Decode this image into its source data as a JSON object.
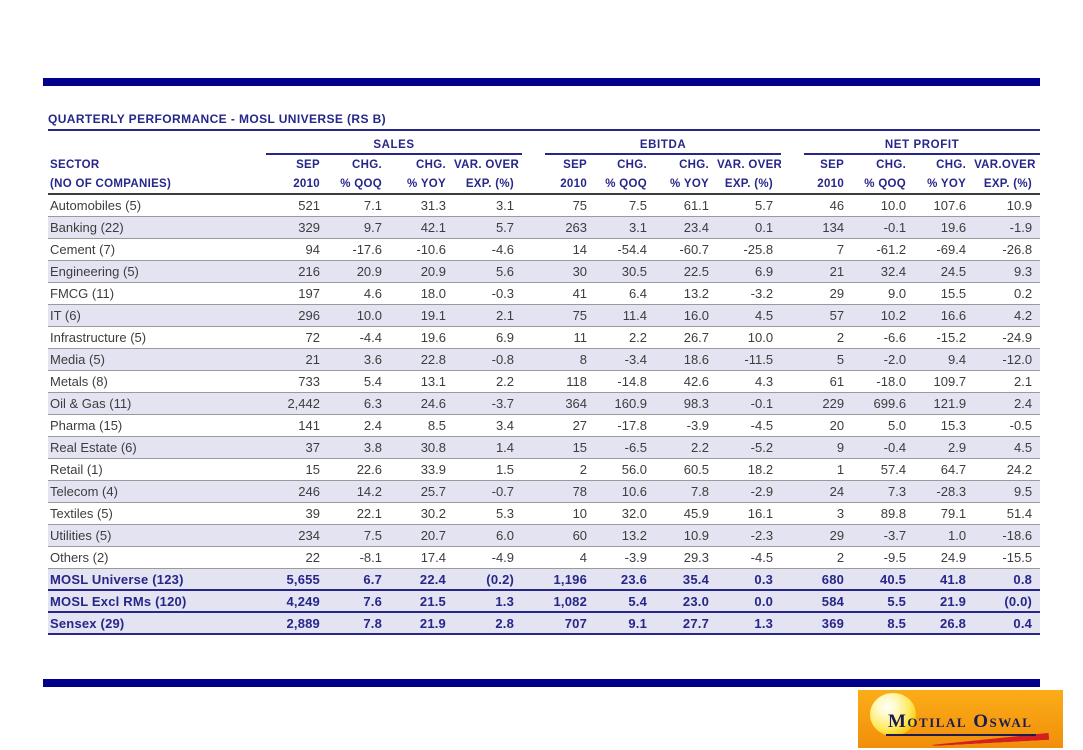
{
  "table": {
    "title": "QUARTERLY PERFORMANCE - MOSL UNIVERSE (RS B)",
    "sector_header": [
      "SECTOR",
      "(NO OF COMPANIES)"
    ],
    "col_groups": [
      {
        "label": "SALES",
        "cols": [
          {
            "l1": "SEP",
            "l2": "2010"
          },
          {
            "l1": "CHG.",
            "l2": "% QOQ"
          },
          {
            "l1": "CHG.",
            "l2": "% YOY"
          },
          {
            "l1": "VAR. OVER",
            "l2": "EXP. (%)"
          }
        ]
      },
      {
        "label": "EBITDA",
        "cols": [
          {
            "l1": "SEP",
            "l2": "2010"
          },
          {
            "l1": "CHG.",
            "l2": "% QOQ"
          },
          {
            "l1": "CHG.",
            "l2": "% YOY"
          },
          {
            "l1": "VAR. OVER",
            "l2": "EXP. (%)"
          }
        ]
      },
      {
        "label": "NET PROFIT",
        "cols": [
          {
            "l1": "SEP",
            "l2": "2010"
          },
          {
            "l1": "CHG.",
            "l2": "% QOQ"
          },
          {
            "l1": "CHG.",
            "l2": "% YOY"
          },
          {
            "l1": "VAR.OVER",
            "l2": "EXP. (%)"
          }
        ]
      }
    ],
    "rows": [
      {
        "sector": "Automobiles (5)",
        "values": [
          "521",
          "7.1",
          "31.3",
          "3.1",
          "75",
          "7.5",
          "61.1",
          "5.7",
          "46",
          "10.0",
          "107.6",
          "10.9"
        ],
        "shaded": false,
        "summary": false
      },
      {
        "sector": "Banking (22)",
        "values": [
          "329",
          "9.7",
          "42.1",
          "5.7",
          "263",
          "3.1",
          "23.4",
          "0.1",
          "134",
          "-0.1",
          "19.6",
          "-1.9"
        ],
        "shaded": true,
        "summary": false
      },
      {
        "sector": "Cement (7)",
        "values": [
          "94",
          "-17.6",
          "-10.6",
          "-4.6",
          "14",
          "-54.4",
          "-60.7",
          "-25.8",
          "7",
          "-61.2",
          "-69.4",
          "-26.8"
        ],
        "shaded": false,
        "summary": false
      },
      {
        "sector": "Engineering (5)",
        "values": [
          "216",
          "20.9",
          "20.9",
          "5.6",
          "30",
          "30.5",
          "22.5",
          "6.9",
          "21",
          "32.4",
          "24.5",
          "9.3"
        ],
        "shaded": true,
        "summary": false
      },
      {
        "sector": "FMCG (11)",
        "values": [
          "197",
          "4.6",
          "18.0",
          "-0.3",
          "41",
          "6.4",
          "13.2",
          "-3.2",
          "29",
          "9.0",
          "15.5",
          "0.2"
        ],
        "shaded": false,
        "summary": false
      },
      {
        "sector": "IT (6)",
        "values": [
          "296",
          "10.0",
          "19.1",
          "2.1",
          "75",
          "11.4",
          "16.0",
          "4.5",
          "57",
          "10.2",
          "16.6",
          "4.2"
        ],
        "shaded": true,
        "summary": false
      },
      {
        "sector": "Infrastructure (5)",
        "values": [
          "72",
          "-4.4",
          "19.6",
          "6.9",
          "11",
          "2.2",
          "26.7",
          "10.0",
          "2",
          "-6.6",
          "-15.2",
          "-24.9"
        ],
        "shaded": false,
        "summary": false
      },
      {
        "sector": "Media (5)",
        "values": [
          "21",
          "3.6",
          "22.8",
          "-0.8",
          "8",
          "-3.4",
          "18.6",
          "-11.5",
          "5",
          "-2.0",
          "9.4",
          "-12.0"
        ],
        "shaded": true,
        "summary": false
      },
      {
        "sector": "Metals (8)",
        "values": [
          "733",
          "5.4",
          "13.1",
          "2.2",
          "118",
          "-14.8",
          "42.6",
          "4.3",
          "61",
          "-18.0",
          "109.7",
          "2.1"
        ],
        "shaded": false,
        "summary": false
      },
      {
        "sector": "Oil & Gas (11)",
        "values": [
          "2,442",
          "6.3",
          "24.6",
          "-3.7",
          "364",
          "160.9",
          "98.3",
          "-0.1",
          "229",
          "699.6",
          "121.9",
          "2.4"
        ],
        "shaded": true,
        "summary": false
      },
      {
        "sector": "Pharma (15)",
        "values": [
          "141",
          "2.4",
          "8.5",
          "3.4",
          "27",
          "-17.8",
          "-3.9",
          "-4.5",
          "20",
          "5.0",
          "15.3",
          "-0.5"
        ],
        "shaded": false,
        "summary": false
      },
      {
        "sector": "Real Estate (6)",
        "values": [
          "37",
          "3.8",
          "30.8",
          "1.4",
          "15",
          "-6.5",
          "2.2",
          "-5.2",
          "9",
          "-0.4",
          "2.9",
          "4.5"
        ],
        "shaded": true,
        "summary": false
      },
      {
        "sector": "Retail (1)",
        "values": [
          "15",
          "22.6",
          "33.9",
          "1.5",
          "2",
          "56.0",
          "60.5",
          "18.2",
          "1",
          "57.4",
          "64.7",
          "24.2"
        ],
        "shaded": false,
        "summary": false
      },
      {
        "sector": "Telecom (4)",
        "values": [
          "246",
          "14.2",
          "25.7",
          "-0.7",
          "78",
          "10.6",
          "7.8",
          "-2.9",
          "24",
          "7.3",
          "-28.3",
          "9.5"
        ],
        "shaded": true,
        "summary": false
      },
      {
        "sector": "Textiles (5)",
        "values": [
          "39",
          "22.1",
          "30.2",
          "5.3",
          "10",
          "32.0",
          "45.9",
          "16.1",
          "3",
          "89.8",
          "79.1",
          "51.4"
        ],
        "shaded": false,
        "summary": false
      },
      {
        "sector": "Utilities (5)",
        "values": [
          "234",
          "7.5",
          "20.7",
          "6.0",
          "60",
          "13.2",
          "10.9",
          "-2.3",
          "29",
          "-3.7",
          "1.0",
          "-18.6"
        ],
        "shaded": true,
        "summary": false
      },
      {
        "sector": "Others (2)",
        "values": [
          "22",
          "-8.1",
          "17.4",
          "-4.9",
          "4",
          "-3.9",
          "29.3",
          "-4.5",
          "2",
          "-9.5",
          "24.9",
          "-15.5"
        ],
        "shaded": false,
        "summary": false
      },
      {
        "sector": "MOSL Universe (123)",
        "values": [
          "5,655",
          "6.7",
          "22.4",
          "(0.2)",
          "1,196",
          "23.6",
          "35.4",
          "0.3",
          "680",
          "40.5",
          "41.8",
          "0.8"
        ],
        "shaded": true,
        "summary": true
      },
      {
        "sector": "MOSL Excl RMs (120)",
        "values": [
          "4,249",
          "7.6",
          "21.5",
          "1.3",
          "1,082",
          "5.4",
          "23.0",
          "0.0",
          "584",
          "5.5",
          "21.9",
          "(0.0)"
        ],
        "shaded": true,
        "summary": true
      },
      {
        "sector": "Sensex (29)",
        "values": [
          "2,889",
          "7.8",
          "21.9",
          "2.8",
          "707",
          "9.1",
          "27.7",
          "1.3",
          "369",
          "8.5",
          "26.8",
          "0.4"
        ],
        "shaded": true,
        "summary": true
      }
    ]
  },
  "logo": {
    "name": "Motilal Oswal"
  },
  "colors": {
    "navy_text": "#26268B",
    "rule_bar": "#00008B",
    "row_shade": "#E3E3F1",
    "logo_orange": "#F59B10",
    "logo_swoosh_red": "#D42020"
  }
}
